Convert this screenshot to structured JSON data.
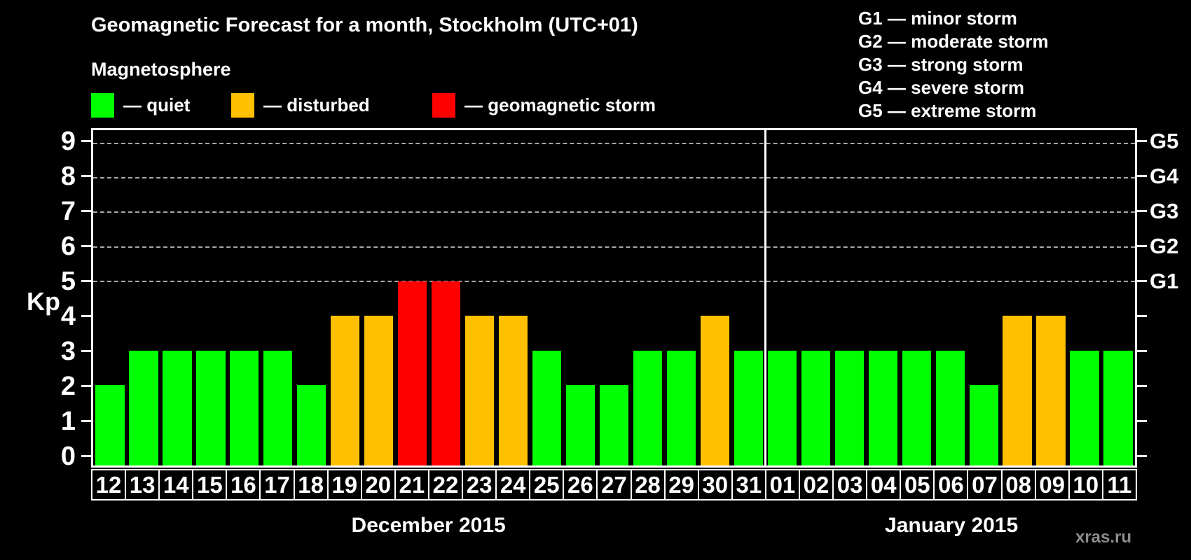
{
  "header": {
    "title": "Geomagnetic Forecast for a month, Stockholm (UTC+01)",
    "subtitle": "Magnetosphere"
  },
  "legend": {
    "items": [
      {
        "key": "quiet",
        "label": "— quiet"
      },
      {
        "key": "disturbed",
        "label": "— disturbed"
      },
      {
        "key": "storm",
        "label": "— geomagnetic storm"
      }
    ]
  },
  "g_legend": {
    "lines": [
      "G1 — minor storm",
      "G2 — moderate storm",
      "G3 — strong storm",
      "G4 — severe storm",
      "G5 — extreme storm"
    ]
  },
  "watermark": "xras.ru",
  "chart_data": {
    "type": "bar",
    "title": "Geomagnetic Forecast for a month, Stockholm (UTC+01)",
    "subtitle": "Magnetosphere",
    "ylabel": "Kp",
    "ylim": [
      0,
      9
    ],
    "yticks": [
      0,
      1,
      2,
      3,
      4,
      5,
      6,
      7,
      8,
      9
    ],
    "gridlines_at": [
      5,
      6,
      7,
      8,
      9
    ],
    "grid": "dashed",
    "right_axis_labels": [
      {
        "kp": 5,
        "label": "G1"
      },
      {
        "kp": 6,
        "label": "G2"
      },
      {
        "kp": 7,
        "label": "G3"
      },
      {
        "kp": 8,
        "label": "G4"
      },
      {
        "kp": 9,
        "label": "G5"
      }
    ],
    "categories": [
      "12",
      "13",
      "14",
      "15",
      "16",
      "17",
      "18",
      "19",
      "20",
      "21",
      "22",
      "23",
      "24",
      "25",
      "26",
      "27",
      "28",
      "29",
      "30",
      "31",
      "01",
      "02",
      "03",
      "04",
      "05",
      "06",
      "07",
      "08",
      "09",
      "10",
      "11"
    ],
    "values": [
      2,
      3,
      3,
      3,
      3,
      3,
      2,
      4,
      4,
      5,
      5,
      4,
      4,
      3,
      2,
      2,
      3,
      3,
      4,
      3,
      3,
      3,
      3,
      3,
      3,
      3,
      2,
      4,
      4,
      3,
      3
    ],
    "statuses": [
      "quiet",
      "quiet",
      "quiet",
      "quiet",
      "quiet",
      "quiet",
      "quiet",
      "disturbed",
      "disturbed",
      "storm",
      "storm",
      "disturbed",
      "disturbed",
      "quiet",
      "quiet",
      "quiet",
      "quiet",
      "quiet",
      "disturbed",
      "quiet",
      "quiet",
      "quiet",
      "quiet",
      "quiet",
      "quiet",
      "quiet",
      "quiet",
      "disturbed",
      "disturbed",
      "quiet",
      "quiet"
    ],
    "series_colors": {
      "quiet": "#00ff00",
      "disturbed": "#ffc000",
      "storm": "#ff0000"
    },
    "months": [
      {
        "label": "December 2015",
        "days": 20
      },
      {
        "label": "January 2015",
        "days": 11
      }
    ],
    "divider_after_index": 19
  }
}
